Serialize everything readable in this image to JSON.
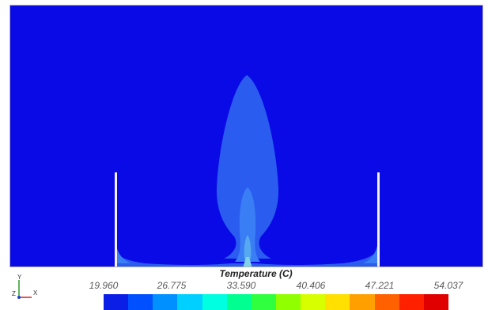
{
  "legend": {
    "title": "Temperature (C)",
    "ticks": [
      "19.960",
      "26.775",
      "33.590",
      "40.406",
      "47.221",
      "54.037"
    ],
    "colors": [
      "#0a1ee6",
      "#0050ff",
      "#0090ff",
      "#00d0ff",
      "#00ffe0",
      "#00ff90",
      "#30ff40",
      "#90ff00",
      "#d8ff00",
      "#ffe000",
      "#ffa000",
      "#ff6000",
      "#ff2000",
      "#e00000"
    ]
  },
  "axes": {
    "y": "Y",
    "z": "Z",
    "x": "X"
  },
  "field_colors": {
    "background": "#0a0ae6",
    "plume_outer": "#2a5cf0",
    "plume_mid": "#3a7ef5",
    "plume_core": "#56a8f0",
    "plume_hot": "#7fd2ea",
    "walls": "#f2f2f2"
  }
}
